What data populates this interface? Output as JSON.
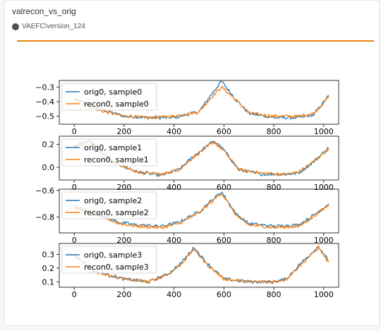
{
  "header": {
    "title": "valrecon_vs_orig",
    "source": "VAEFC\\version_124",
    "accent": "#e8860b"
  },
  "chart_data": [
    {
      "type": "line",
      "xlim": [
        -60,
        1060
      ],
      "ylim": [
        -0.555,
        -0.255
      ],
      "yticks": [
        -0.3,
        -0.4,
        -0.5
      ],
      "ytick_labels": [
        "−0.3",
        "−0.4",
        "−0.5"
      ],
      "xticks": [
        0,
        200,
        400,
        600,
        800,
        1000
      ],
      "xtick_labels": [
        "0",
        "200",
        "400",
        "600",
        "800",
        "1000"
      ],
      "legend": "upper-left",
      "series": [
        {
          "name": "orig0, sample0",
          "color": "#1f77b4",
          "x": [
            0,
            100,
            200,
            300,
            400,
            500,
            550,
            590,
            650,
            700,
            800,
            900,
            960,
            1020
          ],
          "y": [
            -0.38,
            -0.45,
            -0.5,
            -0.51,
            -0.51,
            -0.47,
            -0.35,
            -0.26,
            -0.39,
            -0.48,
            -0.51,
            -0.51,
            -0.49,
            -0.36
          ]
        },
        {
          "name": "recon0, sample0",
          "color": "#ff7f0e",
          "x": [
            0,
            100,
            200,
            300,
            400,
            500,
            550,
            590,
            650,
            700,
            800,
            900,
            960,
            1020
          ],
          "y": [
            -0.39,
            -0.46,
            -0.5,
            -0.51,
            -0.5,
            -0.47,
            -0.37,
            -0.3,
            -0.39,
            -0.48,
            -0.5,
            -0.5,
            -0.48,
            -0.37
          ]
        }
      ]
    },
    {
      "type": "line",
      "xlim": [
        -60,
        1060
      ],
      "ylim": [
        -0.11,
        0.27
      ],
      "yticks": [
        0.2,
        0.0
      ],
      "ytick_labels": [
        "0.2",
        "0.0"
      ],
      "xticks": [
        0,
        200,
        400,
        600,
        800,
        1000
      ],
      "xtick_labels": [
        "0",
        "200",
        "400",
        "600",
        "800",
        "1000"
      ],
      "legend": "upper-left",
      "series": [
        {
          "name": "orig0, sample1",
          "color": "#1f77b4",
          "x": [
            0,
            60,
            150,
            250,
            350,
            420,
            480,
            560,
            600,
            660,
            750,
            850,
            900,
            960,
            1020
          ],
          "y": [
            0.18,
            0.24,
            0.05,
            -0.04,
            -0.07,
            -0.02,
            0.1,
            0.23,
            0.15,
            -0.02,
            -0.06,
            -0.06,
            -0.05,
            0.05,
            0.17
          ]
        },
        {
          "name": "recon0, sample1",
          "color": "#ff7f0e",
          "x": [
            0,
            60,
            150,
            250,
            350,
            420,
            480,
            560,
            600,
            660,
            750,
            850,
            900,
            960,
            1020
          ],
          "y": [
            0.17,
            0.23,
            0.05,
            -0.04,
            -0.06,
            -0.02,
            0.09,
            0.22,
            0.14,
            -0.02,
            -0.05,
            -0.06,
            -0.04,
            0.05,
            0.16
          ]
        }
      ]
    },
    {
      "type": "line",
      "xlim": [
        -60,
        1060
      ],
      "ylim": [
        -0.92,
        -0.59
      ],
      "yticks": [
        -0.6,
        -0.8
      ],
      "ytick_labels": [
        "−0.6",
        "−0.8"
      ],
      "xticks": [
        0,
        200,
        400,
        600,
        800,
        1000
      ],
      "xtick_labels": [
        "0",
        "200",
        "400",
        "600",
        "800",
        "1000"
      ],
      "legend": "upper-left",
      "series": [
        {
          "name": "orig0, sample2",
          "color": "#1f77b4",
          "x": [
            0,
            100,
            180,
            250,
            350,
            420,
            500,
            590,
            650,
            700,
            800,
            900,
            950,
            1020
          ],
          "y": [
            -0.72,
            -0.78,
            -0.84,
            -0.86,
            -0.87,
            -0.84,
            -0.76,
            -0.61,
            -0.78,
            -0.85,
            -0.87,
            -0.86,
            -0.8,
            -0.7
          ]
        },
        {
          "name": "recon0, sample2",
          "color": "#ff7f0e",
          "x": [
            0,
            100,
            180,
            250,
            350,
            420,
            500,
            590,
            650,
            700,
            800,
            900,
            950,
            1020
          ],
          "y": [
            -0.73,
            -0.79,
            -0.85,
            -0.87,
            -0.88,
            -0.85,
            -0.77,
            -0.62,
            -0.79,
            -0.86,
            -0.88,
            -0.87,
            -0.81,
            -0.71
          ]
        }
      ]
    },
    {
      "type": "line",
      "xlim": [
        -60,
        1060
      ],
      "ylim": [
        0.06,
        0.38
      ],
      "yticks": [
        0.3,
        0.2,
        0.1
      ],
      "ytick_labels": [
        "0.3",
        "0.2",
        "0.1"
      ],
      "xticks": [
        0,
        200,
        400,
        600,
        800,
        1000
      ],
      "xtick_labels": [
        "0",
        "200",
        "400",
        "600",
        "800",
        "1000"
      ],
      "legend": "upper-left",
      "series": [
        {
          "name": "orig0, sample3",
          "color": "#1f77b4",
          "x": [
            0,
            80,
            200,
            300,
            380,
            430,
            480,
            530,
            600,
            700,
            800,
            850,
            900,
            980,
            1020
          ],
          "y": [
            0.3,
            0.18,
            0.12,
            0.1,
            0.16,
            0.24,
            0.35,
            0.24,
            0.12,
            0.1,
            0.1,
            0.12,
            0.22,
            0.36,
            0.25
          ]
        },
        {
          "name": "recon0, sample3",
          "color": "#ff7f0e",
          "x": [
            0,
            80,
            200,
            300,
            380,
            430,
            480,
            530,
            600,
            700,
            800,
            850,
            900,
            980,
            1020
          ],
          "y": [
            0.29,
            0.17,
            0.12,
            0.1,
            0.16,
            0.23,
            0.34,
            0.23,
            0.12,
            0.1,
            0.1,
            0.12,
            0.21,
            0.35,
            0.24
          ]
        }
      ]
    }
  ]
}
